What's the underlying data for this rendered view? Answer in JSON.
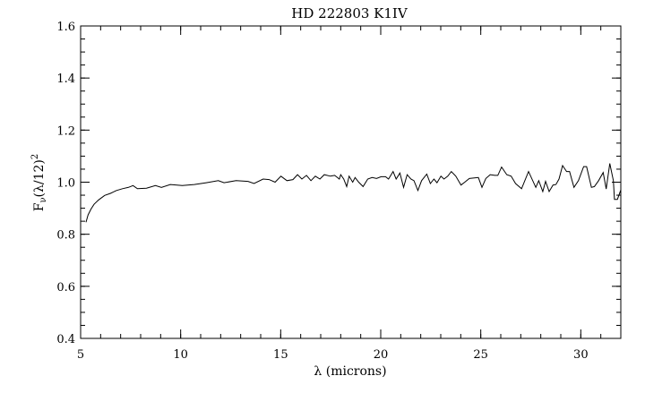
{
  "chart_data": {
    "type": "line",
    "title": "HD 222803 K1IV",
    "xlabel": "λ (microns)",
    "ylabel": {
      "base": "F",
      "sub": "ν",
      "rest": "(λ/12)",
      "sup": "2"
    },
    "xlim": [
      5,
      32
    ],
    "ylim": [
      0.4,
      1.6
    ],
    "x_ticks": [
      5,
      10,
      15,
      20,
      25,
      30
    ],
    "x_tick_labels": [
      "5",
      "10",
      "15",
      "20",
      "25",
      "30"
    ],
    "x_minor_step": 1,
    "y_ticks": [
      0.4,
      0.6,
      0.8,
      1.0,
      1.2,
      1.4,
      1.6
    ],
    "y_tick_labels": [
      "0.4",
      "0.6",
      "0.8",
      "1.0",
      "1.2",
      "1.4",
      "1.6"
    ],
    "y_minor_step": 0.05,
    "grid": false,
    "line_color": "#000000",
    "series": [
      {
        "x": [
          5.27,
          5.37,
          5.52,
          5.67,
          5.9,
          6.2,
          6.49,
          6.79,
          7.09,
          7.39,
          7.62,
          7.84,
          8.29,
          8.74,
          9.04,
          9.48,
          10.08,
          10.68,
          11.28,
          11.88,
          12.17,
          12.77,
          13.37,
          13.67,
          14.12,
          14.42,
          14.72,
          15.01,
          15.31,
          15.61,
          15.84,
          16.06,
          16.29,
          16.51,
          16.73,
          16.96,
          17.18,
          17.48,
          17.7,
          17.93,
          18.0,
          18.15,
          18.3,
          18.42,
          18.6,
          18.72,
          18.9,
          19.12,
          19.35,
          19.57,
          19.79,
          20.02,
          20.24,
          20.39,
          20.62,
          20.77,
          20.96,
          21.14,
          21.32,
          21.51,
          21.66,
          21.86,
          22.04,
          22.3,
          22.48,
          22.66,
          22.81,
          23.01,
          23.16,
          23.35,
          23.53,
          23.75,
          24.01,
          24.2,
          24.43,
          24.88,
          25.06,
          25.25,
          25.47,
          25.7,
          25.85,
          26.04,
          26.3,
          26.52,
          26.74,
          27.04,
          27.39,
          27.75,
          27.9,
          28.1,
          28.24,
          28.42,
          28.61,
          28.76,
          28.91,
          29.09,
          29.29,
          29.44,
          29.66,
          29.88,
          30.14,
          30.29,
          30.53,
          30.68,
          30.89,
          31.12,
          31.27,
          31.45,
          31.63,
          31.68,
          31.83,
          32.0
        ],
        "y": [
          0.846,
          0.874,
          0.897,
          0.915,
          0.932,
          0.949,
          0.957,
          0.968,
          0.975,
          0.98,
          0.987,
          0.975,
          0.977,
          0.987,
          0.98,
          0.991,
          0.987,
          0.991,
          0.998,
          1.006,
          0.998,
          1.006,
          1.003,
          0.995,
          1.012,
          1.01,
          1.0,
          1.023,
          1.006,
          1.01,
          1.029,
          1.012,
          1.026,
          1.006,
          1.023,
          1.012,
          1.029,
          1.023,
          1.026,
          1.012,
          1.029,
          1.012,
          0.983,
          1.023,
          1.0,
          1.018,
          1.0,
          0.983,
          1.012,
          1.018,
          1.014,
          1.021,
          1.021,
          1.012,
          1.041,
          1.012,
          1.035,
          0.98,
          1.029,
          1.012,
          1.006,
          0.968,
          1.006,
          1.031,
          0.995,
          1.012,
          0.998,
          1.023,
          1.012,
          1.023,
          1.041,
          1.023,
          0.989,
          1.0,
          1.014,
          1.018,
          0.98,
          1.014,
          1.029,
          1.026,
          1.026,
          1.058,
          1.029,
          1.023,
          0.995,
          0.975,
          1.041,
          0.98,
          1.006,
          0.964,
          1.003,
          0.964,
          0.989,
          0.991,
          1.012,
          1.064,
          1.041,
          1.041,
          0.98,
          1.006,
          1.06,
          1.06,
          0.98,
          0.983,
          1.006,
          1.037,
          0.974,
          1.072,
          1.006,
          0.934,
          0.934,
          0.97
        ]
      }
    ]
  }
}
